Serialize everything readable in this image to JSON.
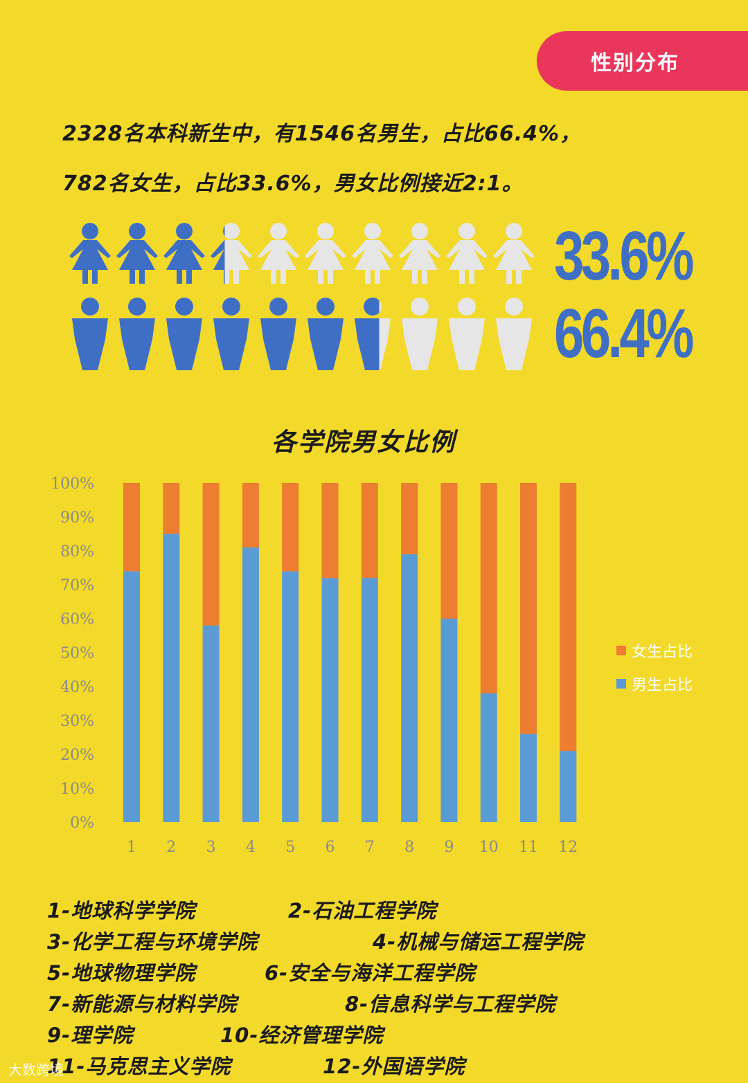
{
  "header": {
    "badge_label": "性别分布"
  },
  "intro": {
    "line1": "2328名本科新生中，有1546名男生，占比66.4%，",
    "line2": "782名女生，占比33.6%，男女比例接近2:1。"
  },
  "pictogram": {
    "female": {
      "percent_label": "33.6%",
      "fraction": 0.336,
      "icon": "female-person-icon",
      "count": 10
    },
    "male": {
      "percent_label": "66.4%",
      "fraction": 0.664,
      "icon": "male-person-icon",
      "count": 10
    },
    "colors": {
      "filled": "#3f6fc4",
      "empty": "#e6e6e6"
    }
  },
  "chart_data": {
    "type": "bar",
    "stacked": true,
    "title": "各学院男女比例",
    "categories": [
      "1",
      "2",
      "3",
      "4",
      "5",
      "6",
      "7",
      "8",
      "9",
      "10",
      "11",
      "12"
    ],
    "series": [
      {
        "name": "男生占比",
        "color": "#5b9bd5",
        "values": [
          74,
          85,
          58,
          81,
          74,
          72,
          72,
          79,
          60,
          38,
          26,
          21
        ]
      },
      {
        "name": "女生占比",
        "color": "#ed7d31",
        "values": [
          26,
          15,
          42,
          19,
          26,
          28,
          28,
          21,
          40,
          62,
          74,
          79
        ]
      }
    ],
    "yticks": [
      "0%",
      "10%",
      "20%",
      "30%",
      "40%",
      "50%",
      "60%",
      "70%",
      "80%",
      "90%",
      "100%"
    ],
    "ylim": [
      0,
      100
    ],
    "grid": false,
    "legend_position": "right"
  },
  "college_key": [
    "1-地球科学学院",
    "2-石油工程学院",
    "3-化学工程与环境学院",
    "4-机械与储运工程学院",
    "5-地球物理学院",
    "6-安全与海洋工程学院",
    "7-新能源与材料学院",
    "8-信息科学与工程学院",
    "9-理学院",
    "10-经济管理学院",
    "11-马克思主义学院",
    "12-外国语学院"
  ],
  "watermark": "大数跨境"
}
